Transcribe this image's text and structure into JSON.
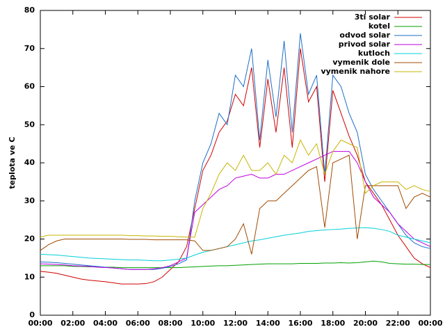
{
  "chart_data": {
    "type": "line",
    "ylabel": "teplota ve C",
    "x": [
      0,
      0.5,
      1,
      1.5,
      2,
      2.5,
      3,
      3.5,
      4,
      4.5,
      5,
      5.5,
      6,
      6.5,
      7,
      7.5,
      8,
      8.5,
      9,
      9.5,
      10,
      10.5,
      11,
      11.5,
      12,
      12.5,
      13,
      13.5,
      14,
      14.5,
      15,
      15.5,
      16,
      16.5,
      17,
      17.5,
      18,
      18.5,
      19,
      19.5,
      20,
      20.5,
      21,
      21.5,
      22,
      22.5,
      23,
      23.5,
      24
    ],
    "series": [
      {
        "name": "3ti solar",
        "color": "#d00000",
        "values": [
          11.5,
          11.3,
          11,
          10.5,
          10,
          9.5,
          9.2,
          9,
          8.8,
          8.5,
          8.2,
          8.2,
          8.2,
          8.3,
          8.8,
          10,
          12,
          14,
          18,
          28,
          38,
          42,
          48,
          51,
          58,
          55,
          65,
          44,
          62,
          48,
          65,
          44,
          70,
          56,
          60,
          35,
          59,
          53,
          47,
          42,
          35,
          32,
          29,
          25,
          21,
          18,
          15,
          13.5,
          12.5
        ]
      },
      {
        "name": "kotel",
        "color": "#00a000",
        "values": [
          13,
          13,
          13,
          13,
          12.8,
          12.8,
          12.7,
          12.7,
          12.6,
          12.6,
          12.5,
          12.5,
          12.5,
          12.5,
          12.5,
          12.5,
          12.5,
          12.5,
          12.6,
          12.7,
          12.8,
          12.9,
          13,
          13,
          13.1,
          13.2,
          13.3,
          13.4,
          13.5,
          13.5,
          13.5,
          13.5,
          13.6,
          13.6,
          13.6,
          13.7,
          13.7,
          13.8,
          13.7,
          13.8,
          14,
          14.2,
          14,
          13.6,
          13.5,
          13.4,
          13.4,
          13.3,
          13.3
        ]
      },
      {
        "name": "odvod solar",
        "color": "#1e6ec8",
        "values": [
          14,
          13.9,
          13.8,
          13.6,
          13.4,
          13.2,
          13,
          12.8,
          12.6,
          12.4,
          12.2,
          12,
          12,
          12,
          12,
          12.3,
          12.8,
          13.5,
          14.5,
          30,
          40,
          45,
          53,
          50,
          63,
          60,
          70,
          46,
          67,
          52,
          72,
          48,
          74,
          58,
          63,
          37,
          63,
          60,
          53,
          48,
          37,
          33,
          30,
          27,
          24,
          21,
          19,
          18,
          17.5
        ]
      },
      {
        "name": "privod solar",
        "color": "#c000e0",
        "values": [
          13.5,
          13.4,
          13.3,
          13.2,
          13,
          12.9,
          12.8,
          12.6,
          12.5,
          12.4,
          12.2,
          12,
          12,
          12,
          12.2,
          12.5,
          13,
          14,
          15,
          27,
          29,
          31,
          33,
          34,
          36,
          36.5,
          37,
          36,
          36,
          37,
          37,
          38,
          39,
          40,
          41,
          42,
          43,
          43,
          43,
          40,
          35,
          31,
          29,
          27,
          24,
          22,
          20,
          19,
          18
        ]
      },
      {
        "name": "kutloch",
        "color": "#00d0d8",
        "values": [
          16,
          15.9,
          15.8,
          15.6,
          15.4,
          15.2,
          15,
          14.9,
          14.8,
          14.7,
          14.6,
          14.5,
          14.5,
          14.4,
          14.3,
          14.3,
          14.5,
          14.7,
          15,
          15.8,
          16.5,
          17,
          17.5,
          18,
          18.5,
          19,
          19.5,
          19.8,
          20.2,
          20.6,
          21,
          21.3,
          21.6,
          22,
          22.2,
          22.4,
          22.5,
          22.6,
          22.8,
          22.9,
          23,
          22.8,
          22.5,
          22,
          21,
          20.5,
          20,
          19.5,
          19
        ]
      },
      {
        "name": "vymenik dole",
        "color": "#a04a00",
        "values": [
          17,
          18.5,
          19.5,
          20,
          20,
          20,
          20,
          20,
          20,
          20,
          20,
          19.9,
          19.9,
          19.9,
          19.8,
          19.8,
          19.8,
          19.8,
          19.8,
          19.5,
          17,
          17,
          17.5,
          18,
          20,
          24,
          16,
          28,
          30,
          30,
          32,
          34,
          36,
          38,
          39,
          23,
          40,
          41,
          42,
          20,
          34,
          34,
          34,
          34,
          34,
          28,
          31,
          32,
          31
        ]
      },
      {
        "name": "vymenik nahore",
        "color": "#c8b400",
        "values": [
          20.5,
          21,
          21,
          21,
          21,
          21,
          21,
          21,
          21,
          21,
          21,
          20.9,
          20.9,
          20.8,
          20.8,
          20.7,
          20.7,
          20.6,
          20.5,
          20.5,
          28,
          32,
          37,
          40,
          38,
          42,
          38,
          38,
          40,
          37,
          42,
          40,
          46,
          42,
          45,
          37,
          43,
          46,
          45,
          44,
          32,
          34,
          35,
          35,
          35,
          33,
          34,
          33,
          32.5
        ]
      }
    ],
    "xlim": [
      0,
      24
    ],
    "xticks": [
      {
        "value": 0,
        "label": "00:00"
      },
      {
        "value": 2,
        "label": "02:00"
      },
      {
        "value": 4,
        "label": "04:00"
      },
      {
        "value": 6,
        "label": "06:00"
      },
      {
        "value": 8,
        "label": "08:00"
      },
      {
        "value": 10,
        "label": "10:00"
      },
      {
        "value": 12,
        "label": "12:00"
      },
      {
        "value": 14,
        "label": "14:00"
      },
      {
        "value": 16,
        "label": "16:00"
      },
      {
        "value": 18,
        "label": "18:00"
      },
      {
        "value": 20,
        "label": "20:00"
      },
      {
        "value": 22,
        "label": "22:00"
      },
      {
        "value": 24,
        "label": "00:00"
      }
    ],
    "ylim": [
      0,
      80
    ],
    "yticks": [
      0,
      10,
      20,
      30,
      40,
      50,
      60,
      70,
      80
    ],
    "grid": false,
    "legend": "top-right"
  }
}
